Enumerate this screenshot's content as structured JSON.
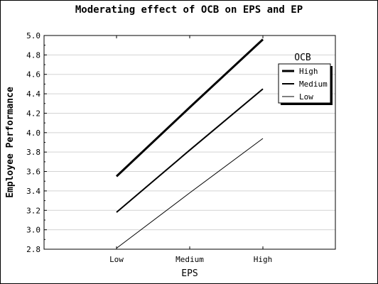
{
  "chart_data": {
    "type": "line",
    "title": "Moderating effect of OCB on EPS and EP",
    "xlabel": "EPS",
    "ylabel": "Employee Performance",
    "categories": [
      "Low",
      "Medium",
      "High"
    ],
    "ylim": [
      2.8,
      5.0
    ],
    "yticks": [
      "2.8",
      "3.0",
      "3.2",
      "3.4",
      "3.6",
      "3.8",
      "4.0",
      "4.2",
      "4.4",
      "4.6",
      "4.8",
      "5.0"
    ],
    "grid": true,
    "legend": {
      "title": "OCB",
      "placement": "top-right"
    },
    "series": [
      {
        "name": "High",
        "values": [
          3.55,
          4.26,
          4.96
        ]
      },
      {
        "name": "Medium",
        "values": [
          3.18,
          3.82,
          4.45
        ]
      },
      {
        "name": "Low",
        "values": [
          2.81,
          3.38,
          3.94
        ]
      }
    ],
    "colors": {
      "line": "#000000",
      "grid": "#d3d3d3",
      "background": "#ffffff"
    }
  }
}
